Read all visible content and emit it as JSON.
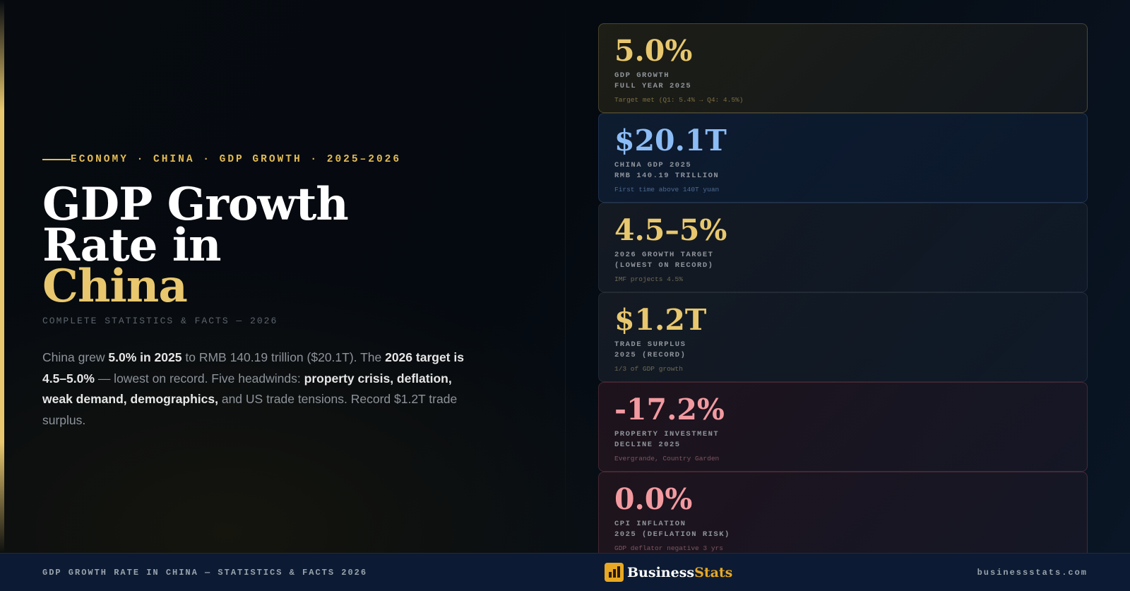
{
  "hero": {
    "eyebrow": "ECONOMY · CHINA · GDP GROWTH · 2025–2026",
    "title_line1": "GDP Growth",
    "title_line2": "Rate in",
    "title_highlight": "China",
    "subtitle": "COMPLETE STATISTICS & FACTS — 2026",
    "desc": {
      "t1": "China grew ",
      "b1": "5.0% in 2025",
      "t2": " to RMB 140.19 trillion ($20.1T). The ",
      "b2": "2026 target is 4.5–5.0%",
      "t3": " — lowest on record. Five headwinds: ",
      "b3": "property crisis, deflation, weak demand, demographics,",
      "t4": " and US trade tensions. Record $1.2T trade surplus."
    }
  },
  "cards": [
    {
      "value": "5.0%",
      "label1": "GDP GROWTH",
      "label2": "FULL YEAR 2025",
      "note": "Target met (Q1: 5.4% → Q4: 4.5%)",
      "color": "#e8c76e"
    },
    {
      "value": "$20.1T",
      "label1": "CHINA GDP 2025",
      "label2": "RMB 140.19 TRILLION",
      "note": "First time above 140T yuan",
      "color": "#8cbcf5"
    },
    {
      "value": "4.5–5%",
      "label1": "2026 GROWTH TARGET",
      "label2": "(LOWEST ON RECORD)",
      "note": "IMF projects 4.5%",
      "color": "#e8c76e"
    },
    {
      "value": "$1.2T",
      "label1": "TRADE SURPLUS",
      "label2": "2025 (RECORD)",
      "note": "1/3 of GDP growth",
      "color": "#e8c76e"
    },
    {
      "value": "-17.2%",
      "label1": "PROPERTY INVESTMENT",
      "label2": "DECLINE 2025",
      "note": "Evergrande, Country Garden",
      "color": "#f29aa0"
    },
    {
      "value": "0.0%",
      "label1": "CPI INFLATION",
      "label2": "2025 (DEFLATION RISK)",
      "note": "GDP deflator negative 3 yrs",
      "color": "#f29aa0"
    }
  ],
  "footer": {
    "left": "GDP GROWTH RATE IN CHINA — STATISTICS & FACTS 2026",
    "brand1": "Business",
    "brand2": "Stats",
    "right": "businessstats.com",
    "brand_icon": "bar-chart-icon"
  }
}
